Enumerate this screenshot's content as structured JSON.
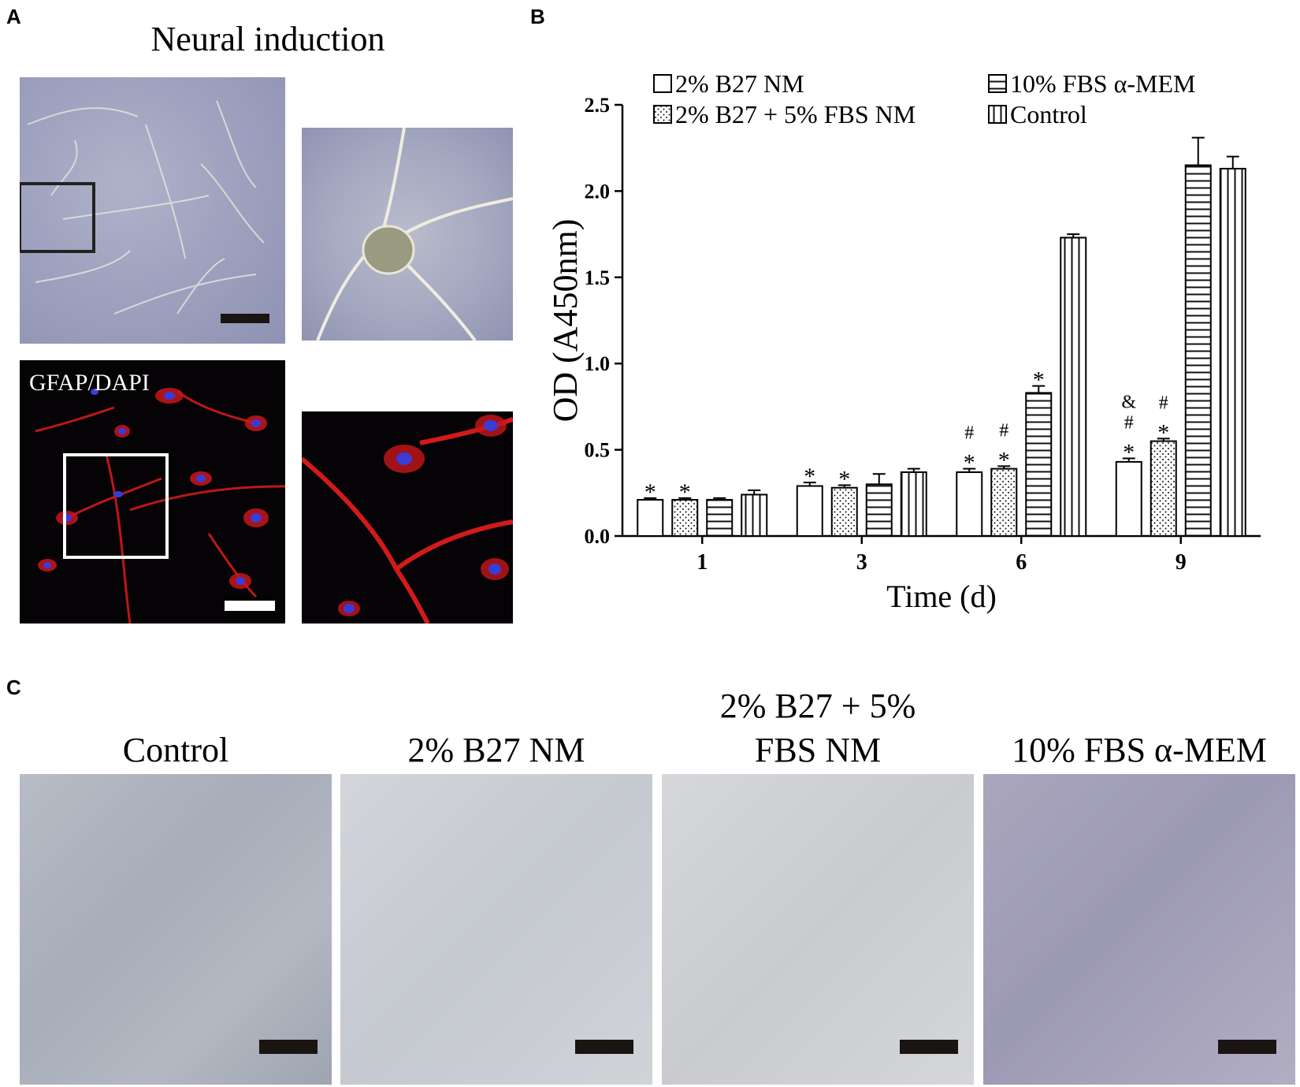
{
  "panels": {
    "a_letter": "A",
    "b_letter": "B",
    "c_letter": "C",
    "a_title": "Neural induction",
    "a_fluor_label": "GFAP/DAPI",
    "c_titles": [
      "Control",
      "2% B27 NM",
      "2% B27 + 5%\nFBS NM",
      "10% FBS α-MEM"
    ],
    "c_title_line1": "2% B27 + 5%",
    "c_title_line2": "FBS NM"
  },
  "colors": {
    "fluor_cell": "#d21a1a",
    "fluor_nucleus": "#3a3cd8",
    "scalebar_dark": "#1a1412",
    "scalebar_light": "#ffffff"
  },
  "chart_data": {
    "type": "bar",
    "categories": [
      "1",
      "3",
      "6",
      "9"
    ],
    "xlabel": "Time (d)",
    "ylabel": "OD (A450nm)",
    "ylim": [
      0,
      2.5
    ],
    "yticks": [
      "0.0",
      "0.5",
      "1.0",
      "1.5",
      "2.0",
      "2.5"
    ],
    "legend_placement": "top",
    "series": [
      {
        "name": "2% B27 NM",
        "pattern": "open",
        "values": [
          0.21,
          0.29,
          0.37,
          0.43
        ],
        "errors": [
          0.01,
          0.02,
          0.02,
          0.02
        ],
        "marks": [
          [
            "*"
          ],
          [
            "*"
          ],
          [
            "*",
            "#"
          ],
          [
            "*",
            "#",
            "&"
          ]
        ]
      },
      {
        "name": "2% B27 + 5% FBS NM",
        "pattern": "dots",
        "values": [
          0.21,
          0.28,
          0.39,
          0.55
        ],
        "errors": [
          0.01,
          0.015,
          0.015,
          0.015
        ],
        "marks": [
          [
            "*"
          ],
          [
            "*"
          ],
          [
            "*",
            "#"
          ],
          [
            "*",
            "#"
          ]
        ]
      },
      {
        "name": "10% FBS α-MEM",
        "pattern": "hlines",
        "values": [
          0.21,
          0.3,
          0.83,
          2.15
        ],
        "errors": [
          0.01,
          0.06,
          0.04,
          0.16
        ],
        "marks": [
          [],
          [],
          [
            "*"
          ],
          []
        ]
      },
      {
        "name": "Control",
        "pattern": "vlines",
        "values": [
          0.24,
          0.37,
          1.73,
          2.13
        ],
        "errors": [
          0.025,
          0.02,
          0.02,
          0.07
        ],
        "marks": [
          [],
          [],
          [],
          []
        ]
      }
    ]
  }
}
